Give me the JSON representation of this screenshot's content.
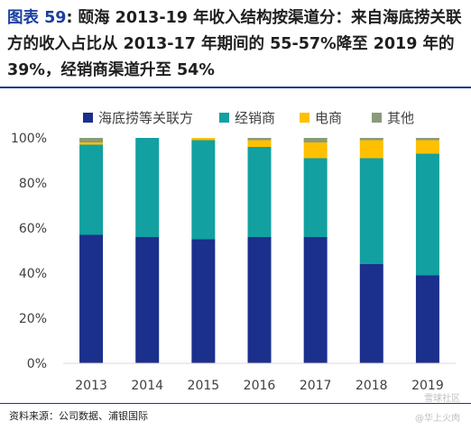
{
  "figure": {
    "tag": "图表 59",
    "title": "颐海 2013-19 年收入结构按渠道分：来自海底捞关联方的收入占比从 2013-17 年期间的 55-57%降至 2019 年的 39%，经销商渠道升至 54%",
    "source": "资料来源：公司数据、浦银国际",
    "watermark_lines": [
      "雪球社区",
      "@华上火肉"
    ]
  },
  "chart_data": {
    "type": "bar",
    "stacked": true,
    "categories": [
      "2013",
      "2014",
      "2015",
      "2016",
      "2017",
      "2018",
      "2019"
    ],
    "series": [
      {
        "name": "海底捞等关联方",
        "color": "#1b2f8c",
        "values": [
          57,
          56,
          55,
          56,
          56,
          44,
          39
        ]
      },
      {
        "name": "经销商",
        "color": "#12a0a0",
        "values": [
          40,
          44,
          44,
          40,
          35,
          47,
          54
        ]
      },
      {
        "name": "电商",
        "color": "#ffc000",
        "values": [
          1,
          0,
          1,
          3,
          7,
          8,
          6
        ]
      },
      {
        "name": "其他",
        "color": "#8a9a7a",
        "values": [
          2,
          0,
          0,
          1,
          2,
          1,
          1
        ]
      }
    ],
    "ylim": [
      0,
      100
    ],
    "yticks": [
      "0%",
      "20%",
      "40%",
      "60%",
      "80%",
      "100%"
    ],
    "legend_position": "top",
    "grid": false
  }
}
